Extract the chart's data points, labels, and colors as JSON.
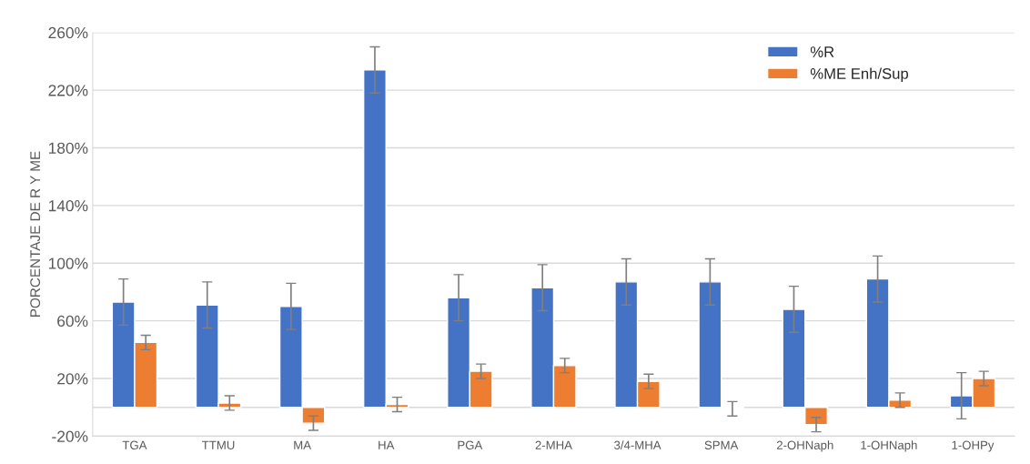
{
  "chart_data": {
    "type": "bar",
    "ylabel": "PORCENTAJE DE R Y ME",
    "categories": [
      "TGA",
      "TTMU",
      "MA",
      "HA",
      "PGA",
      "2-MHA",
      "3/4-MHA",
      "SPMA",
      "2-OHNaph",
      "1-OHNaph",
      "1-OHPy"
    ],
    "series": [
      {
        "name": "%R",
        "color": "#4472c4",
        "values": [
          73,
          71,
          70,
          234,
          76,
          83,
          87,
          87,
          68,
          89,
          8
        ],
        "errors": [
          16,
          16,
          16,
          16,
          16,
          16,
          16,
          16,
          16,
          16,
          16
        ]
      },
      {
        "name": "%ME Enh/Sup",
        "color": "#ed7d31",
        "values": [
          45,
          3,
          -11,
          2,
          25,
          29,
          18,
          -1,
          -12,
          5,
          20
        ],
        "errors": [
          5,
          5,
          5,
          5,
          5,
          5,
          5,
          5,
          5,
          5,
          5
        ]
      }
    ],
    "ylim": [
      -20,
      260
    ],
    "yticks": [
      {
        "value": -20,
        "label": "-20%"
      },
      {
        "value": 20,
        "label": "20%"
      },
      {
        "value": 60,
        "label": "60%"
      },
      {
        "value": 100,
        "label": "100%"
      },
      {
        "value": 140,
        "label": "140%"
      },
      {
        "value": 180,
        "label": "180%"
      },
      {
        "value": 220,
        "label": "220%"
      },
      {
        "value": 260,
        "label": "260%"
      }
    ],
    "grid": "y",
    "legend": "top right"
  }
}
